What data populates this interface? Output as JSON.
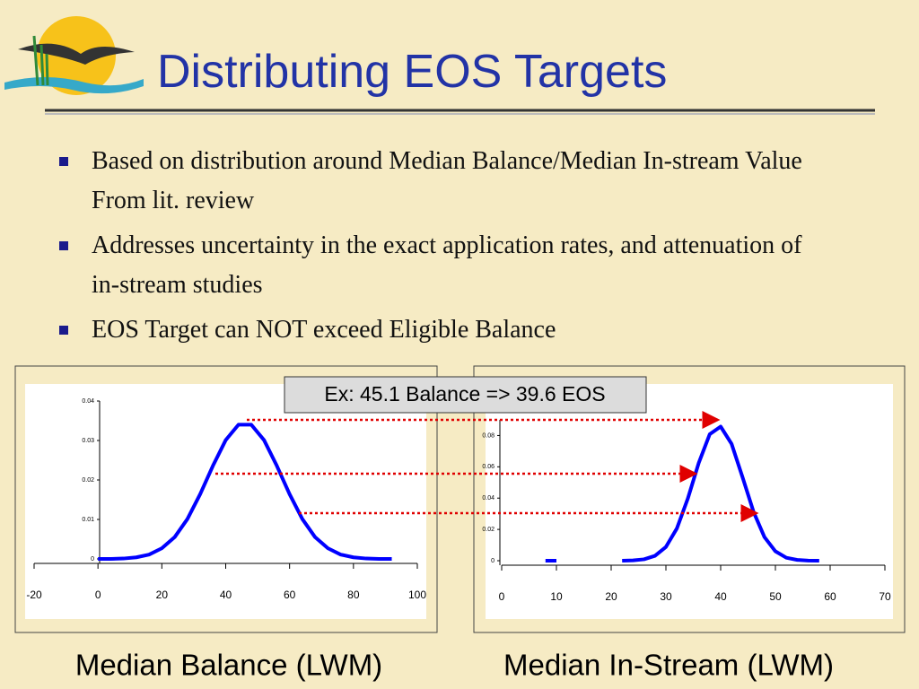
{
  "header": {
    "title": "Distributing EOS Targets"
  },
  "bullets": [
    "Based on distribution around Median Balance/Median In-stream Value From lit. review",
    "Addresses uncertainty in the exact application rates, and attenuation of  in-stream studies",
    "EOS Target can NOT exceed Eligible Balance"
  ],
  "annotation": "Ex: 45.1 Balance => 39.6 EOS",
  "charts": [
    {
      "type": "line",
      "x_label": "Median Balance (LWM)",
      "color": "#0000ff",
      "xlim": [
        -20,
        100
      ],
      "xticks": [
        -20,
        0,
        20,
        40,
        60,
        80,
        100
      ],
      "ylim": [
        0,
        0.04
      ],
      "yticks": [
        0,
        0.01,
        0.02,
        0.03,
        0.04
      ],
      "pieces": [
        {
          "x": [
            0,
            4,
            8,
            12,
            16,
            20,
            24,
            28,
            32,
            36,
            40,
            44,
            48,
            52,
            56,
            60,
            64,
            68,
            72,
            76,
            80,
            84,
            88,
            92
          ],
          "values": [
            0,
            0,
            0.0001,
            0.0004,
            0.0011,
            0.0027,
            0.0055,
            0.0101,
            0.0164,
            0.0236,
            0.0301,
            0.034,
            0.034,
            0.0301,
            0.0236,
            0.0164,
            0.0101,
            0.0055,
            0.0027,
            0.0011,
            0.0004,
            0.0001,
            0,
            0
          ]
        }
      ]
    },
    {
      "type": "line",
      "x_label": "Median In-Stream (LWM)",
      "color": "#0000ff",
      "xlim": [
        0,
        70
      ],
      "xticks": [
        0,
        10,
        20,
        30,
        40,
        50,
        60,
        70
      ],
      "ylim": [
        0,
        0.09
      ],
      "yticks": [
        0,
        0.02,
        0.04,
        0.06,
        0.08
      ],
      "pieces": [
        {
          "x": [
            8,
            10
          ],
          "values": [
            0,
            0
          ]
        },
        {
          "x": [
            22,
            24,
            26,
            28,
            30,
            32,
            34,
            36,
            38,
            40,
            42,
            44,
            46,
            48,
            50,
            52,
            54,
            56,
            58
          ],
          "values": [
            0,
            0.0002,
            0.0009,
            0.0031,
            0.0088,
            0.0206,
            0.0397,
            0.0625,
            0.0808,
            0.0857,
            0.0746,
            0.0533,
            0.0313,
            0.0151,
            0.006,
            0.0019,
            0.0005,
            0.0001,
            0
          ]
        }
      ]
    }
  ]
}
